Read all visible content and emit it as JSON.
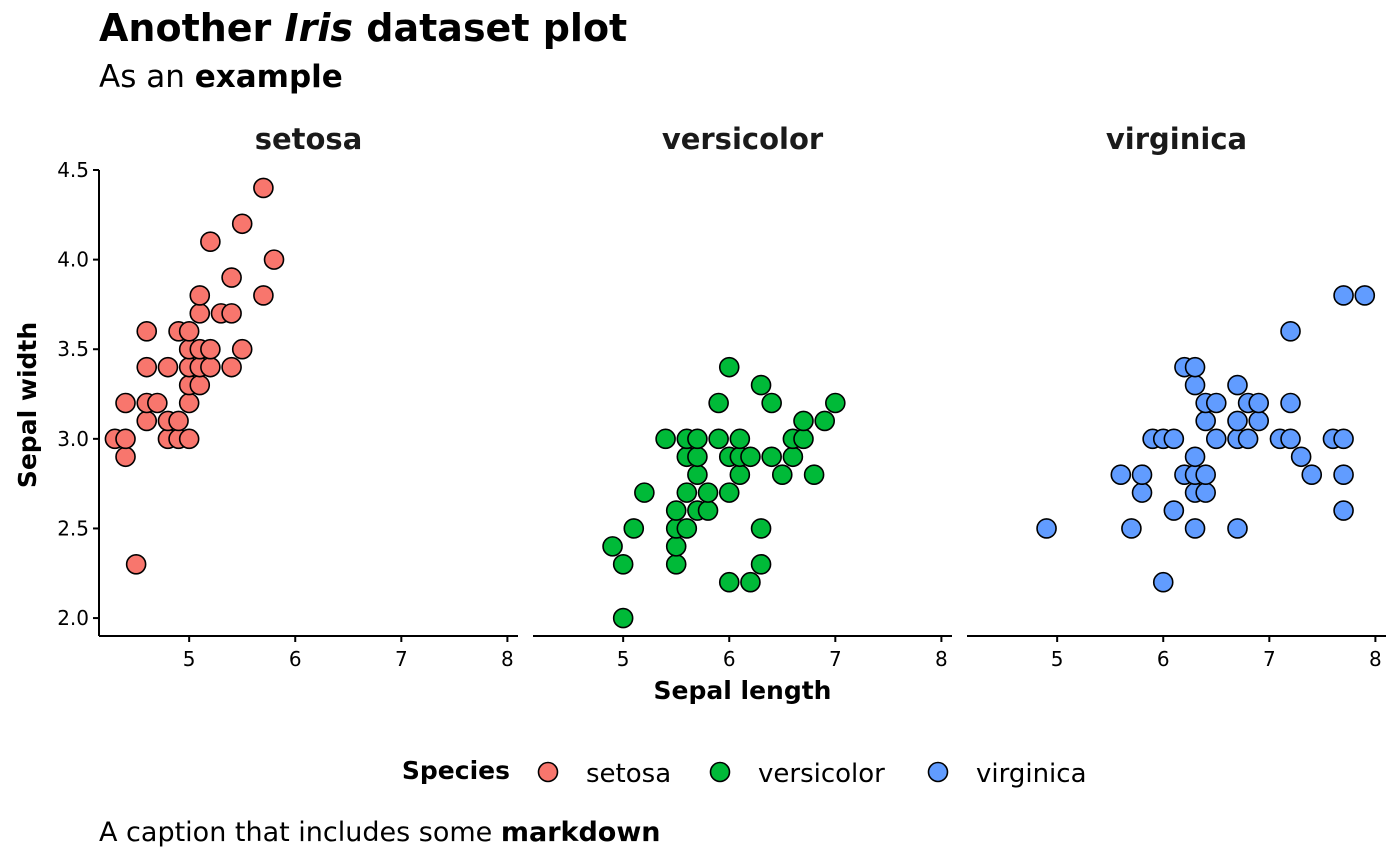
{
  "header": {
    "title_pre": "Another ",
    "title_italic": "Iris",
    "title_post": " dataset plot",
    "subtitle_pre": "As an ",
    "subtitle_bold": "example"
  },
  "caption": {
    "pre": "A caption that includes some ",
    "bold": "markdown"
  },
  "chart_data": {
    "type": "scatter",
    "xlabel": "Sepal length",
    "ylabel": "Sepal width",
    "xlim": [
      4.15,
      8.1
    ],
    "ylim": [
      1.9,
      4.5
    ],
    "x_ticks": [
      5,
      6,
      7,
      8
    ],
    "y_ticks": [
      "2.0",
      "2.5",
      "3.0",
      "3.5",
      "4.0",
      "4.5"
    ],
    "facet_by": "Species",
    "legend": {
      "title": "Species",
      "position": "bottom"
    },
    "grid": false,
    "series": [
      {
        "name": "setosa",
        "color": "#F8766D",
        "points": [
          [
            4.3,
            3.0
          ],
          [
            4.4,
            2.9
          ],
          [
            4.4,
            3.0
          ],
          [
            4.4,
            3.2
          ],
          [
            4.5,
            2.3
          ],
          [
            4.6,
            3.1
          ],
          [
            4.6,
            3.2
          ],
          [
            4.6,
            3.4
          ],
          [
            4.6,
            3.6
          ],
          [
            4.7,
            3.2
          ],
          [
            4.8,
            3.0
          ],
          [
            4.8,
            3.1
          ],
          [
            4.8,
            3.4
          ],
          [
            4.9,
            3.0
          ],
          [
            4.9,
            3.1
          ],
          [
            4.9,
            3.6
          ],
          [
            5.0,
            3.0
          ],
          [
            5.0,
            3.2
          ],
          [
            5.0,
            3.3
          ],
          [
            5.0,
            3.4
          ],
          [
            5.0,
            3.5
          ],
          [
            5.0,
            3.6
          ],
          [
            5.1,
            3.3
          ],
          [
            5.1,
            3.4
          ],
          [
            5.1,
            3.5
          ],
          [
            5.1,
            3.7
          ],
          [
            5.1,
            3.8
          ],
          [
            5.2,
            3.4
          ],
          [
            5.2,
            3.5
          ],
          [
            5.2,
            4.1
          ],
          [
            5.3,
            3.7
          ],
          [
            5.4,
            3.4
          ],
          [
            5.4,
            3.7
          ],
          [
            5.4,
            3.9
          ],
          [
            5.5,
            3.5
          ],
          [
            5.5,
            4.2
          ],
          [
            5.7,
            3.8
          ],
          [
            5.7,
            4.4
          ],
          [
            5.8,
            4.0
          ]
        ]
      },
      {
        "name": "versicolor",
        "color": "#00BA38",
        "points": [
          [
            4.9,
            2.4
          ],
          [
            5.0,
            2.0
          ],
          [
            5.0,
            2.3
          ],
          [
            5.1,
            2.5
          ],
          [
            5.2,
            2.7
          ],
          [
            5.4,
            3.0
          ],
          [
            5.5,
            2.3
          ],
          [
            5.5,
            2.4
          ],
          [
            5.5,
            2.5
          ],
          [
            5.5,
            2.6
          ],
          [
            5.6,
            2.5
          ],
          [
            5.6,
            2.7
          ],
          [
            5.6,
            2.9
          ],
          [
            5.6,
            3.0
          ],
          [
            5.7,
            2.6
          ],
          [
            5.7,
            2.8
          ],
          [
            5.7,
            2.9
          ],
          [
            5.7,
            3.0
          ],
          [
            5.8,
            2.6
          ],
          [
            5.8,
            2.7
          ],
          [
            5.9,
            3.0
          ],
          [
            5.9,
            3.2
          ],
          [
            6.0,
            2.2
          ],
          [
            6.0,
            2.7
          ],
          [
            6.0,
            2.9
          ],
          [
            6.0,
            3.4
          ],
          [
            6.1,
            2.8
          ],
          [
            6.1,
            2.9
          ],
          [
            6.1,
            3.0
          ],
          [
            6.2,
            2.2
          ],
          [
            6.2,
            2.9
          ],
          [
            6.3,
            2.3
          ],
          [
            6.3,
            2.5
          ],
          [
            6.3,
            3.3
          ],
          [
            6.4,
            2.9
          ],
          [
            6.4,
            3.2
          ],
          [
            6.5,
            2.8
          ],
          [
            6.6,
            2.9
          ],
          [
            6.6,
            3.0
          ],
          [
            6.7,
            3.0
          ],
          [
            6.7,
            3.1
          ],
          [
            6.8,
            2.8
          ],
          [
            6.9,
            3.1
          ],
          [
            7.0,
            3.2
          ]
        ]
      },
      {
        "name": "virginica",
        "color": "#619CFF",
        "points": [
          [
            4.9,
            2.5
          ],
          [
            5.6,
            2.8
          ],
          [
            5.7,
            2.5
          ],
          [
            5.8,
            2.7
          ],
          [
            5.8,
            2.8
          ],
          [
            5.9,
            3.0
          ],
          [
            6.0,
            2.2
          ],
          [
            6.0,
            3.0
          ],
          [
            6.1,
            2.6
          ],
          [
            6.1,
            3.0
          ],
          [
            6.2,
            2.8
          ],
          [
            6.2,
            3.4
          ],
          [
            6.3,
            2.5
          ],
          [
            6.3,
            2.7
          ],
          [
            6.3,
            2.8
          ],
          [
            6.3,
            2.9
          ],
          [
            6.3,
            3.3
          ],
          [
            6.3,
            3.4
          ],
          [
            6.4,
            2.7
          ],
          [
            6.4,
            2.8
          ],
          [
            6.4,
            3.1
          ],
          [
            6.4,
            3.2
          ],
          [
            6.5,
            3.0
          ],
          [
            6.5,
            3.2
          ],
          [
            6.7,
            2.5
          ],
          [
            6.7,
            3.0
          ],
          [
            6.7,
            3.1
          ],
          [
            6.7,
            3.3
          ],
          [
            6.8,
            3.0
          ],
          [
            6.8,
            3.2
          ],
          [
            6.9,
            3.1
          ],
          [
            6.9,
            3.2
          ],
          [
            7.1,
            3.0
          ],
          [
            7.2,
            3.0
          ],
          [
            7.2,
            3.2
          ],
          [
            7.2,
            3.6
          ],
          [
            7.3,
            2.9
          ],
          [
            7.4,
            2.8
          ],
          [
            7.6,
            3.0
          ],
          [
            7.7,
            2.6
          ],
          [
            7.7,
            2.8
          ],
          [
            7.7,
            3.0
          ],
          [
            7.7,
            3.8
          ],
          [
            7.9,
            3.8
          ]
        ]
      }
    ]
  }
}
